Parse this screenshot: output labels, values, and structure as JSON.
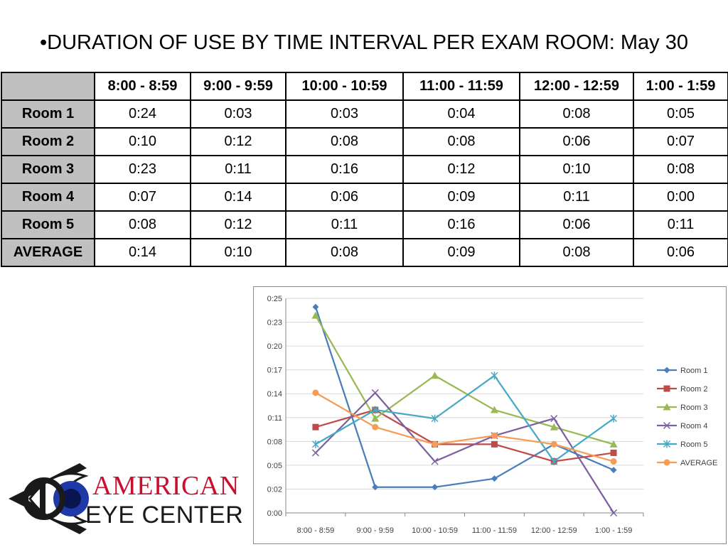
{
  "slide": {
    "title": "•DURATION OF USE BY TIME INTERVAL PER EXAM ROOM: May 30"
  },
  "table": {
    "columns": [
      "8:00 - 8:59",
      "9:00 - 9:59",
      "10:00 - 10:59",
      "11:00 - 11:59",
      "12:00 - 12:59",
      "1:00 - 1:59"
    ],
    "rows": [
      {
        "label": "Room 1",
        "cells": [
          "0:24",
          "0:03",
          "0:03",
          "0:04",
          "0:08",
          "0:05"
        ]
      },
      {
        "label": "Room 2",
        "cells": [
          "0:10",
          "0:12",
          "0:08",
          "0:08",
          "0:06",
          "0:07"
        ]
      },
      {
        "label": "Room 3",
        "cells": [
          "0:23",
          "0:11",
          "0:16",
          "0:12",
          "0:10",
          "0:08"
        ]
      },
      {
        "label": "Room 4",
        "cells": [
          "0:07",
          "0:14",
          "0:06",
          "0:09",
          "0:11",
          "0:00"
        ]
      },
      {
        "label": "Room 5",
        "cells": [
          "0:08",
          "0:12",
          "0:11",
          "0:16",
          "0:06",
          "0:11"
        ]
      },
      {
        "label": "AVERAGE",
        "cells": [
          "0:14",
          "0:10",
          "0:08",
          "0:09",
          "0:08",
          "0:06"
        ]
      }
    ]
  },
  "chart_data": {
    "type": "line",
    "categories": [
      "8:00 - 8:59",
      "9:00 - 9:59",
      "10:00 - 10:59",
      "11:00 - 11:59",
      "12:00 - 12:59",
      "1:00 - 1:59"
    ],
    "y_ticks": [
      "0:00",
      "0:02",
      "0:05",
      "0:08",
      "0:11",
      "0:14",
      "0:17",
      "0:20",
      "0:23",
      "0:25"
    ],
    "ylim": [
      0,
      25
    ],
    "grid": true,
    "legend_position": "right",
    "series": [
      {
        "name": "Room 1",
        "values": [
          24,
          3,
          3,
          4,
          8,
          5
        ],
        "color": "#4a7ebb",
        "marker": "diamond"
      },
      {
        "name": "Room 2",
        "values": [
          10,
          12,
          8,
          8,
          6,
          7
        ],
        "color": "#be4b48",
        "marker": "square"
      },
      {
        "name": "Room 3",
        "values": [
          23,
          11,
          16,
          12,
          10,
          8
        ],
        "color": "#98b954",
        "marker": "triangle"
      },
      {
        "name": "Room 4",
        "values": [
          7,
          14,
          6,
          9,
          11,
          0
        ],
        "color": "#7d60a0",
        "marker": "x"
      },
      {
        "name": "Room 5",
        "values": [
          8,
          12,
          11,
          16,
          6,
          11
        ],
        "color": "#46aac5",
        "marker": "star"
      },
      {
        "name": "AVERAGE",
        "values": [
          14,
          10,
          8,
          9,
          8,
          6
        ],
        "color": "#f59d56",
        "marker": "circle"
      }
    ]
  },
  "logo": {
    "line1": "AMERICAN",
    "line2": "EYE CENTER",
    "red": "#c8102e"
  }
}
